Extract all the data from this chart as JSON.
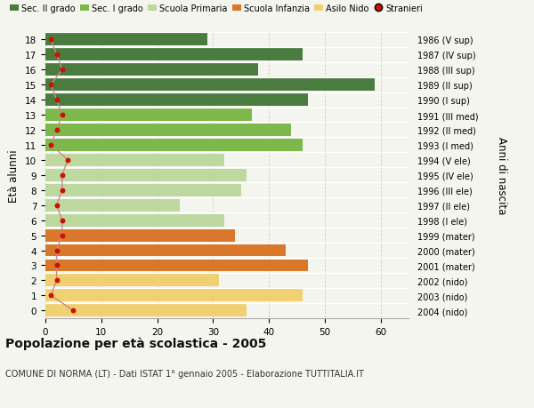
{
  "ages": [
    18,
    17,
    16,
    15,
    14,
    13,
    12,
    11,
    10,
    9,
    8,
    7,
    6,
    5,
    4,
    3,
    2,
    1,
    0
  ],
  "bar_values": [
    29,
    46,
    38,
    59,
    47,
    37,
    44,
    46,
    32,
    36,
    35,
    24,
    32,
    34,
    43,
    47,
    31,
    46,
    36
  ],
  "stranieri": [
    1,
    2,
    3,
    1,
    2,
    3,
    2,
    1,
    4,
    3,
    3,
    2,
    3,
    3,
    2,
    2,
    2,
    1,
    5
  ],
  "right_labels_by_age": {
    "18": "1986 (V sup)",
    "17": "1987 (IV sup)",
    "16": "1988 (III sup)",
    "15": "1989 (II sup)",
    "14": "1990 (I sup)",
    "13": "1991 (III med)",
    "12": "1992 (II med)",
    "11": "1993 (I med)",
    "10": "1994 (V ele)",
    "9": "1995 (IV ele)",
    "8": "1996 (III ele)",
    "7": "1997 (II ele)",
    "6": "1998 (I ele)",
    "5": "1999 (mater)",
    "4": "2000 (mater)",
    "3": "2001 (mater)",
    "2": "2002 (nido)",
    "1": "2003 (nido)",
    "0": "2004 (nido)"
  },
  "bar_colors": [
    "#4a7c3f",
    "#4a7c3f",
    "#4a7c3f",
    "#4a7c3f",
    "#4a7c3f",
    "#7db84a",
    "#7db84a",
    "#7db84a",
    "#bdd9a0",
    "#bdd9a0",
    "#bdd9a0",
    "#bdd9a0",
    "#bdd9a0",
    "#d9782a",
    "#d9782a",
    "#d9782a",
    "#f0d070",
    "#f0d070",
    "#f0d070"
  ],
  "legend_labels": [
    "Sec. II grado",
    "Sec. I grado",
    "Scuola Primaria",
    "Scuola Infanzia",
    "Asilo Nido",
    "Stranieri"
  ],
  "legend_colors": [
    "#4a7c3f",
    "#7db84a",
    "#bdd9a0",
    "#d9782a",
    "#f0d070",
    "#cc1100"
  ],
  "ylabel_left": "Età alunni",
  "ylabel_right": "Anni di nascita",
  "title": "Popolazione per età scolastica - 2005",
  "subtitle": "COMUNE DI NORMA (LT) - Dati ISTAT 1° gennaio 2005 - Elaborazione TUTTITALIA.IT",
  "bg_color": "#f5f5f0",
  "stranieri_color": "#cc1100",
  "stranieri_line_color": "#cc8888",
  "xlim": [
    0,
    65
  ],
  "xticks": [
    0,
    10,
    20,
    30,
    40,
    50,
    60
  ]
}
